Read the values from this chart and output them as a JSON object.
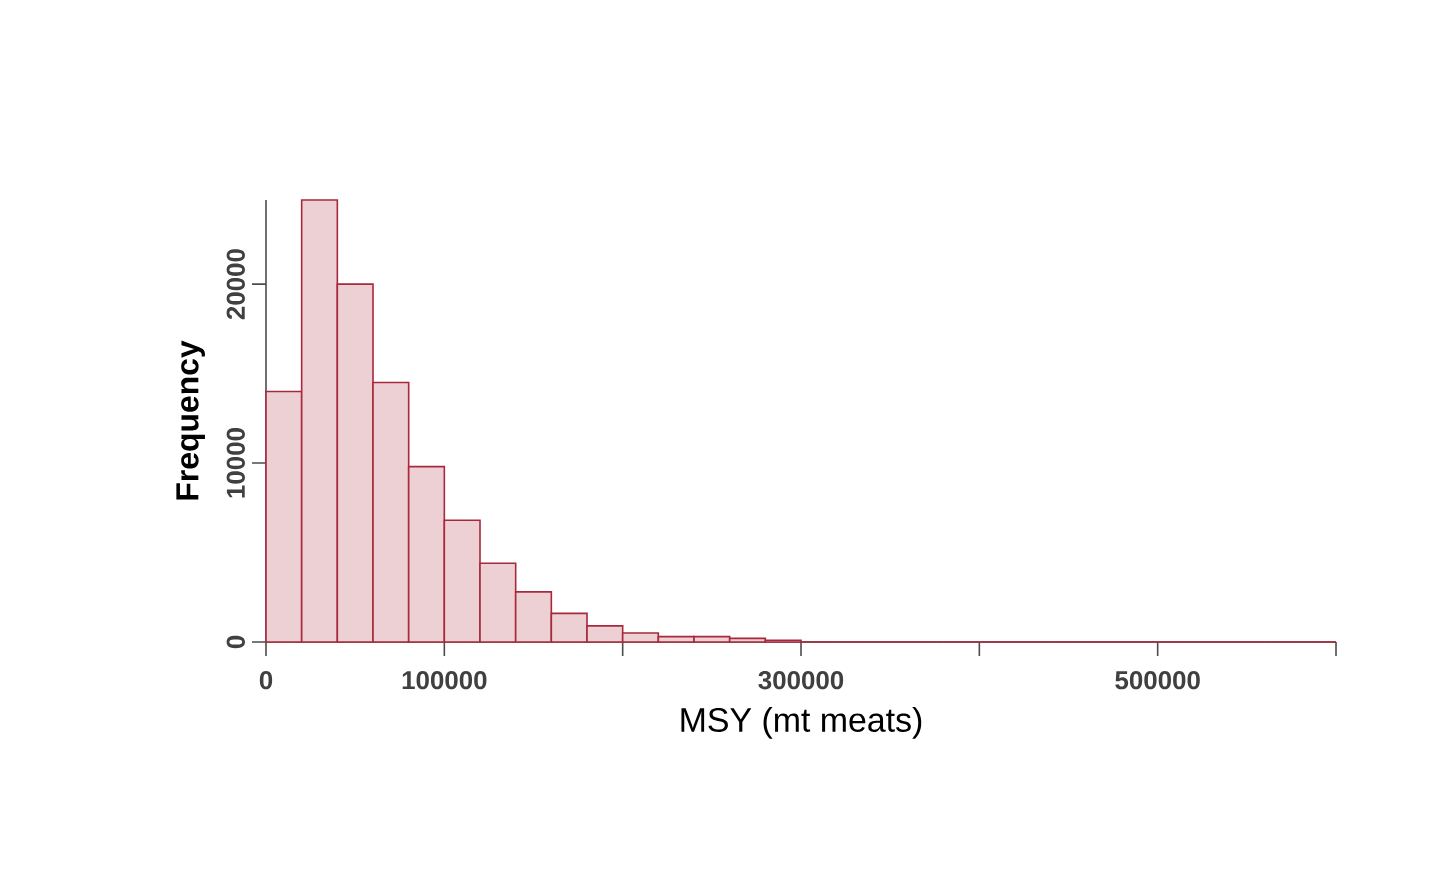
{
  "chart_data": {
    "type": "histogram",
    "xlabel": "MSY (mt meats)",
    "ylabel": "Frequency",
    "bins": [
      0,
      20000,
      40000,
      60000,
      80000,
      100000,
      120000,
      140000,
      160000,
      180000,
      200000,
      220000,
      240000,
      260000,
      280000,
      300000,
      320000,
      340000,
      360000,
      380000,
      400000,
      420000,
      440000,
      460000,
      480000,
      500000,
      520000,
      540000,
      560000,
      580000,
      600000
    ],
    "values": [
      14000,
      24700,
      20000,
      14500,
      9800,
      6800,
      4400,
      2800,
      1600,
      900,
      500,
      300,
      300,
      200,
      100,
      0,
      0,
      0,
      0,
      0,
      0,
      0,
      0,
      0,
      0,
      0,
      0,
      0,
      0,
      0
    ],
    "color": "#a8283c",
    "xlim": [
      0,
      600000
    ],
    "ylim": [
      0,
      24700
    ],
    "xticks": [
      0,
      100000,
      {
        "value": 200000,
        "label": null
      },
      300000,
      {
        "value": 400000,
        "label": null
      },
      500000,
      {
        "value": 600000,
        "label": null
      }
    ],
    "yticks": [
      0,
      10000,
      20000
    ],
    "grid": false
  }
}
